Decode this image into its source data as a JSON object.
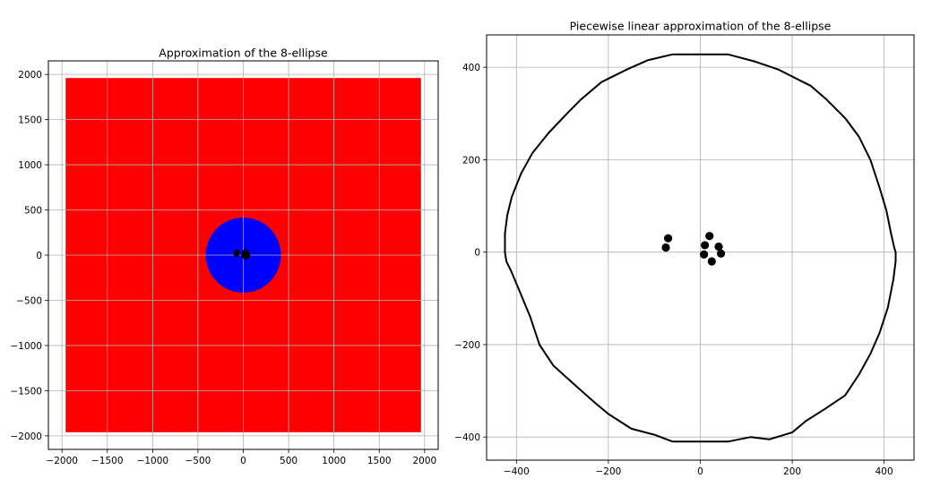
{
  "chart_data": [
    {
      "type": "scatter",
      "title": "Approximation of the 8-ellipse",
      "xlabel": "",
      "ylabel": "",
      "xlim": [
        -2150,
        2150
      ],
      "ylim": [
        -2150,
        2150
      ],
      "grid": true,
      "xticks": [
        -2000,
        -1500,
        -1000,
        -500,
        0,
        500,
        1000,
        1500,
        2000
      ],
      "yticks": [
        -2000,
        -1500,
        -1000,
        -500,
        0,
        500,
        1000,
        1500,
        2000
      ],
      "regions": [
        {
          "shape": "square",
          "color": "#ff0000",
          "x": [
            -1960,
            1960
          ],
          "y": [
            -1960,
            1960
          ]
        },
        {
          "shape": "circle",
          "color": "#0000ff",
          "center": [
            0,
            0
          ],
          "radius": 415
        }
      ],
      "points": {
        "color": "#000000",
        "x": [
          -75,
          -70,
          10,
          20,
          40,
          8,
          25,
          45
        ],
        "y": [
          10,
          30,
          15,
          35,
          12,
          -5,
          -20,
          -3
        ]
      }
    },
    {
      "type": "line",
      "title": "Piecewise linear approximation of the 8-ellipse",
      "xlabel": "",
      "ylabel": "",
      "xlim": [
        -465,
        465
      ],
      "ylim": [
        -450,
        470
      ],
      "grid": true,
      "xticks": [
        -400,
        -200,
        0,
        200,
        400
      ],
      "yticks": [
        -400,
        -200,
        0,
        200,
        400
      ],
      "line_color": "#000000",
      "curve": {
        "x": [
          -60,
          60,
          120,
          170,
          200,
          240,
          275,
          315,
          345,
          370,
          390,
          405,
          415,
          422,
          425,
          425,
          420,
          408,
          390,
          370,
          345,
          315,
          270,
          230,
          200,
          150,
          110,
          60,
          -60,
          -100,
          -150,
          -200,
          -230,
          -270,
          -320,
          -350,
          -370,
          -395,
          -412,
          -422,
          -425,
          -425,
          -420,
          -410,
          -390,
          -365,
          -330,
          -290,
          -260,
          -215,
          -160,
          -115,
          -60
        ],
        "y": [
          428,
          428,
          412,
          395,
          380,
          360,
          330,
          290,
          250,
          200,
          140,
          90,
          40,
          10,
          0,
          -20,
          -60,
          -120,
          -175,
          -220,
          -265,
          -310,
          -340,
          -365,
          -390,
          -405,
          -400,
          -410,
          -410,
          -395,
          -382,
          -350,
          -325,
          -290,
          -245,
          -200,
          -140,
          -80,
          -40,
          -20,
          0,
          40,
          80,
          120,
          170,
          215,
          258,
          300,
          330,
          368,
          395,
          415,
          428
        ]
      },
      "points": {
        "color": "#000000",
        "x": [
          -75,
          -70,
          10,
          20,
          40,
          8,
          25,
          45
        ],
        "y": [
          10,
          30,
          15,
          35,
          12,
          -5,
          -20,
          -3
        ]
      }
    }
  ]
}
